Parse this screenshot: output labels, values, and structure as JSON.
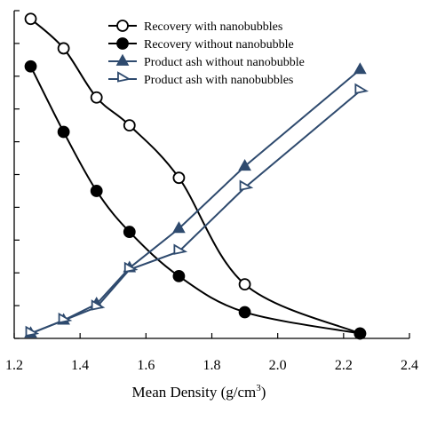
{
  "chart_data": {
    "type": "line",
    "xlabel": "Mean Density (g/cm",
    "xlabel_sup": "3",
    "xlabel_close": ")",
    "xlim": [
      1.2,
      2.4
    ],
    "x_ticks": [
      "1.2",
      "1.4",
      "1.6",
      "1.8",
      "2.0",
      "2.2",
      "2.4"
    ],
    "x_tick_values": [
      1.2,
      1.4,
      1.6,
      1.8,
      2.0,
      2.2,
      2.4
    ],
    "ylim": [
      0,
      100
    ],
    "y_tick_values": [
      0,
      10,
      20,
      30,
      40,
      50,
      60,
      70,
      80,
      90,
      100
    ],
    "grid": false,
    "legend_position": "top-right",
    "x": [
      1.25,
      1.35,
      1.45,
      1.55,
      1.7,
      1.9,
      2.25
    ],
    "series": [
      {
        "name": "Recovery with nanobubbles",
        "marker": "circle-open",
        "color": "#000000",
        "values": [
          97.5,
          88.5,
          73.5,
          65,
          49,
          16.5,
          1.5
        ]
      },
      {
        "name": "Recovery without nanobubble",
        "marker": "circle-filled",
        "color": "#000000",
        "values": [
          83,
          63,
          45,
          32.5,
          19,
          8,
          1.5
        ]
      },
      {
        "name": "Product ash without nanobubble",
        "marker": "triangle-filled",
        "color": "#2e4a6e",
        "values": [
          1.5,
          5.5,
          10.5,
          21.5,
          33.5,
          52.5,
          82
        ]
      },
      {
        "name": "Product ash with nanobubbles",
        "marker": "triangle-open",
        "color": "#2e4a6e",
        "values": [
          1.5,
          5.5,
          9.5,
          21,
          26.5,
          46,
          75.5
        ]
      }
    ]
  }
}
